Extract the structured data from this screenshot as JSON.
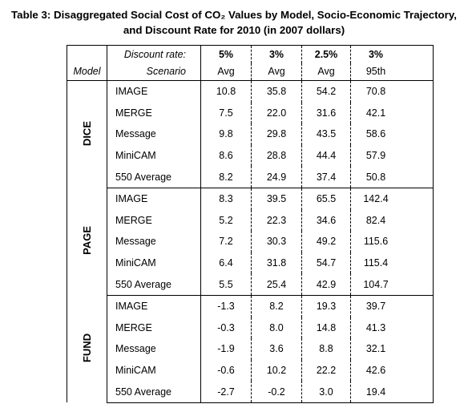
{
  "header": {
    "title": "Table 3: Disaggregated Social Cost of CO₂ Values by Model, Socio-Economic Trajectory, and Discount Rate for 2010 (in 2007 dollars)"
  },
  "table": {
    "discount_label": "Discount rate:",
    "rates": [
      "5%",
      "3%",
      "2.5%",
      "3%"
    ],
    "model_label": "Model",
    "scenario_label": "Scenario",
    "stats": [
      "Avg",
      "Avg",
      "Avg",
      "95th"
    ],
    "groups": [
      {
        "model": "DICE",
        "rows": [
          {
            "scenario": "IMAGE",
            "values": [
              "10.8",
              "35.8",
              "54.2",
              "70.8"
            ]
          },
          {
            "scenario": "MERGE",
            "values": [
              "7.5",
              "22.0",
              "31.6",
              "42.1"
            ]
          },
          {
            "scenario": "Message",
            "values": [
              "9.8",
              "29.8",
              "43.5",
              "58.6"
            ]
          },
          {
            "scenario": "MiniCAM",
            "values": [
              "8.6",
              "28.8",
              "44.4",
              "57.9"
            ]
          },
          {
            "scenario": "550 Average",
            "values": [
              "8.2",
              "24.9",
              "37.4",
              "50.8"
            ]
          }
        ]
      },
      {
        "model": "PAGE",
        "rows": [
          {
            "scenario": "IMAGE",
            "values": [
              "8.3",
              "39.5",
              "65.5",
              "142.4"
            ]
          },
          {
            "scenario": "MERGE",
            "values": [
              "5.2",
              "22.3",
              "34.6",
              "82.4"
            ]
          },
          {
            "scenario": "Message",
            "values": [
              "7.2",
              "30.3",
              "49.2",
              "115.6"
            ]
          },
          {
            "scenario": "MiniCAM",
            "values": [
              "6.4",
              "31.8",
              "54.7",
              "115.4"
            ]
          },
          {
            "scenario": "550 Average",
            "values": [
              "5.5",
              "25.4",
              "42.9",
              "104.7"
            ]
          }
        ]
      },
      {
        "model": "FUND",
        "rows": [
          {
            "scenario": "IMAGE",
            "values": [
              "-1.3",
              "8.2",
              "19.3",
              "39.7"
            ]
          },
          {
            "scenario": "MERGE",
            "values": [
              "-0.3",
              "8.0",
              "14.8",
              "41.3"
            ]
          },
          {
            "scenario": "Message",
            "values": [
              "-1.9",
              "3.6",
              "8.8",
              "32.1"
            ]
          },
          {
            "scenario": "MiniCAM",
            "values": [
              "-0.6",
              "10.2",
              "22.2",
              "42.6"
            ]
          },
          {
            "scenario": "550 Average",
            "values": [
              "-2.7",
              "-0.2",
              "3.0",
              "19.4"
            ]
          }
        ]
      }
    ]
  }
}
